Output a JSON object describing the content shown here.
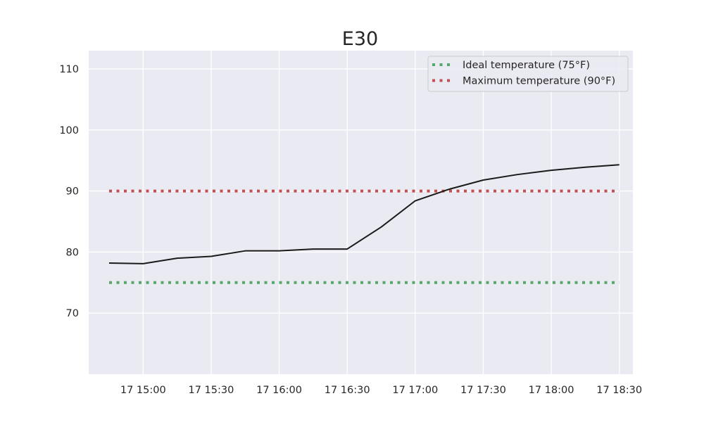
{
  "chart_data": {
    "type": "line",
    "title": "E30",
    "xlabel": "",
    "ylabel": "",
    "x_unit": "minutes",
    "x": [
      "17 14:45",
      "17 15:00",
      "17 15:15",
      "17 15:30",
      "17 15:45",
      "17 16:00",
      "17 16:15",
      "17 16:30",
      "17 16:45",
      "17 17:00",
      "17 17:15",
      "17 17:30",
      "17 17:45",
      "17 18:00",
      "17 18:15",
      "17 18:30"
    ],
    "xticks": [
      "17 15:00",
      "17 15:30",
      "17 16:00",
      "17 16:30",
      "17 17:00",
      "17 17:30",
      "17 18:00",
      "17 18:30"
    ],
    "xlim": [
      "17 14:36",
      "17 18:36"
    ],
    "ylim": [
      60,
      113
    ],
    "yticks": [
      70,
      80,
      90,
      100,
      110
    ],
    "grid": true,
    "legend_position": "top-right",
    "series": [
      {
        "name": "",
        "color": "#1a1a1a",
        "style": "solid",
        "values": [
          78.2,
          78.1,
          79.0,
          79.3,
          80.2,
          80.2,
          80.5,
          80.5,
          84.1,
          88.4,
          90.3,
          91.8,
          92.7,
          93.4,
          93.9,
          94.3
        ]
      },
      {
        "name": "Ideal temperature (75°F)",
        "color": "#55a868",
        "style": "dotted",
        "values": [
          75,
          75,
          75,
          75,
          75,
          75,
          75,
          75,
          75,
          75,
          75,
          75,
          75,
          75,
          75,
          75
        ]
      },
      {
        "name": "Maximum temperature (90°F)",
        "color": "#c44e52",
        "style": "dotted",
        "values": [
          90,
          90,
          90,
          90,
          90,
          90,
          90,
          90,
          90,
          90,
          90,
          90,
          90,
          90,
          90,
          90
        ]
      }
    ],
    "colors": {
      "plot_background": "#eaeaf2",
      "grid": "#ffffff"
    }
  }
}
